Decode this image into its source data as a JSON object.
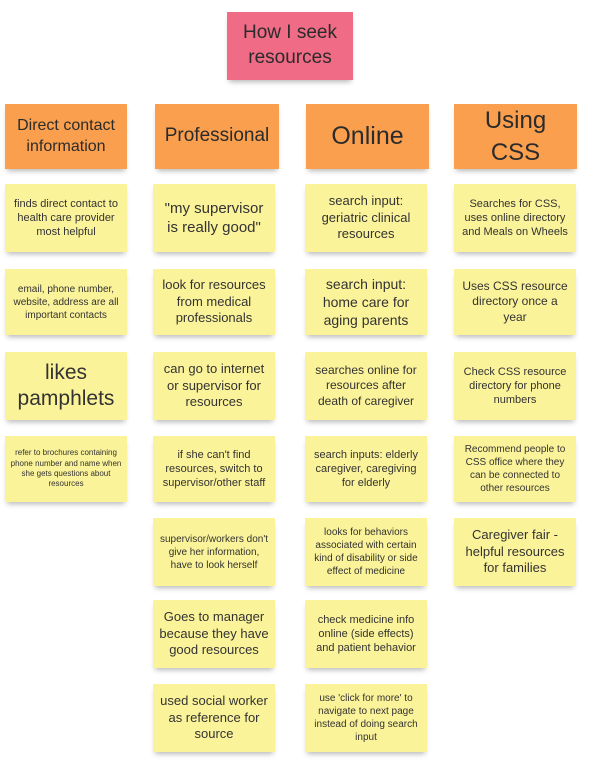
{
  "title": "How I seek resources",
  "columns": [
    {
      "header": "Direct contact information",
      "notes": [
        "finds direct contact to health care provider most helpful",
        "email, phone number, website, address are all important contacts",
        "likes pamphlets",
        "refer to brochures containing phone number and name when she gets questions about resources"
      ]
    },
    {
      "header": "Professional",
      "notes": [
        "\"my supervisor is really good\"",
        "look for resources from medical professionals",
        "can go to internet or supervisor for resources",
        "if she can't find resources, switch to supervisor/other staff",
        "supervisor/workers don't give her information, have to look herself",
        "Goes to manager because they have good resources",
        "used social worker as reference for source"
      ]
    },
    {
      "header": "Online",
      "notes": [
        "search input: geriatric clinical resources",
        "search input: home care for aging parents",
        "searches online for resources after death of caregiver",
        "search inputs: elderly caregiver, caregiving for elderly",
        "looks for behaviors associated with certain kind of disability or side effect of medicine",
        "check medicine info online (side effects) and patient behavior",
        "use 'click for more' to navigate to next page instead of doing search input"
      ]
    },
    {
      "header": "Using CSS",
      "notes": [
        "Searches for CSS, uses online directory and Meals on Wheels",
        "Uses CSS resource directory once a year",
        "Check CSS resource directory for phone numbers",
        "Recommend people to CSS office where they can be connected to other resources",
        "Caregiver fair - helpful resources for families"
      ]
    }
  ],
  "colors": {
    "title": "#f06b85",
    "header": "#fa9f4e",
    "note": "#fbf39a"
  }
}
